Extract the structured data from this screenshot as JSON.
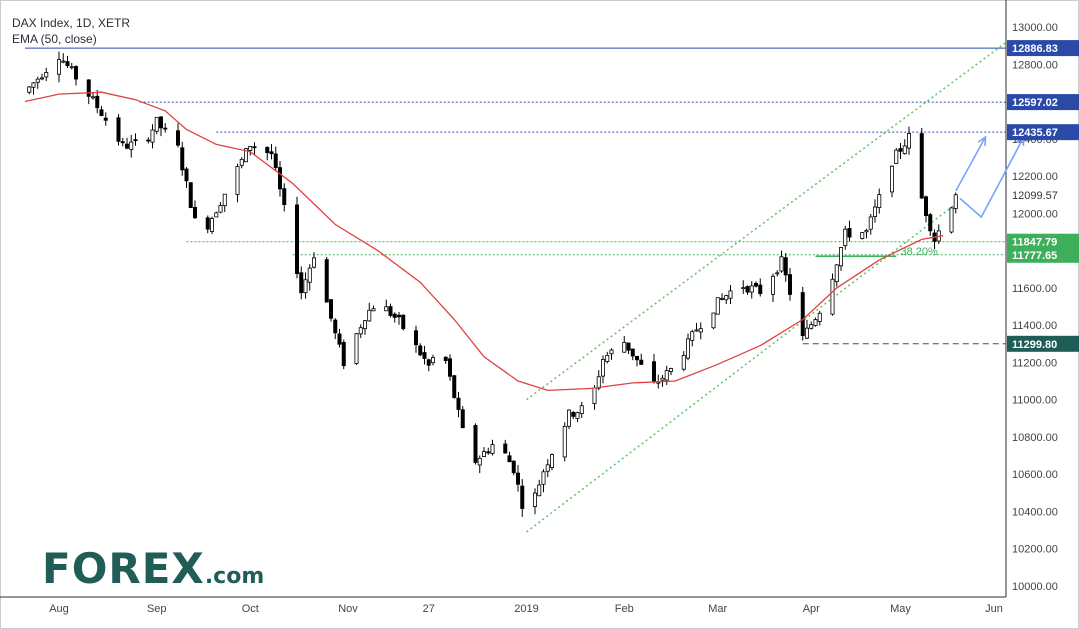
{
  "chart_data": {
    "type": "candlestick",
    "title": "DAX Index, 1D, XETR",
    "subtitle": "EMA (50, close)",
    "ylim": [
      10000,
      13000
    ],
    "y_ticks": [
      10000,
      10200,
      10400,
      10600,
      10800,
      11000,
      11200,
      11400,
      11600,
      11800,
      12000,
      12200,
      12400,
      12600,
      12800,
      13000
    ],
    "y_tick_labels": [
      "10000.00",
      "10200.00",
      "10400.00",
      "10600.00",
      "10800.00",
      "11000.00",
      "11200.00",
      "11400.00",
      "11600.00",
      "11800.00",
      "12000.00",
      "12200.00",
      "12400.00",
      "12600.00",
      "12800.00",
      "13000.00"
    ],
    "x_tick_labels": [
      "Aug",
      "Sep",
      "Oct",
      "Nov",
      "27",
      "2019",
      "Feb",
      "Mar",
      "Apr",
      "May",
      "Jun"
    ],
    "x_tick_days": [
      0,
      23,
      45,
      68,
      87,
      110,
      133,
      155,
      177,
      198,
      220
    ],
    "last_day": 211,
    "levels": [
      {
        "value": 12886.83,
        "label": "12886.83",
        "style": "solid",
        "color": "#2b4aa8",
        "x_start_day": -8
      },
      {
        "value": 12597.02,
        "label": "12597.02",
        "style": "dotted",
        "color": "#2b4aa8",
        "x_start_day": 19
      },
      {
        "value": 12435.67,
        "label": "12435.67",
        "style": "dotted",
        "color": "#2b4aa8",
        "x_start_day": 37
      },
      {
        "value": 11847.79,
        "label": "11847.79",
        "style": "dotted",
        "color": "#3dae5a",
        "x_start_day": 30
      },
      {
        "value": 11777.65,
        "label": "11777.65",
        "style": "dotted",
        "color": "#3dae5a",
        "x_start_day": 55
      },
      {
        "value": 11299.8,
        "label": "11299.80",
        "style": "dashed",
        "color": "#1f5d56",
        "x_start_day": 175
      }
    ],
    "current_price": {
      "value": 12099.57,
      "label": "12099.57"
    },
    "fib_label": "38.20%",
    "fib_level": 11770,
    "ema_path": [
      [
        -8,
        12600
      ],
      [
        0,
        12640
      ],
      [
        10,
        12650
      ],
      [
        18,
        12610
      ],
      [
        25,
        12550
      ],
      [
        30,
        12450
      ],
      [
        37,
        12370
      ],
      [
        45,
        12330
      ],
      [
        55,
        12160
      ],
      [
        65,
        11940
      ],
      [
        75,
        11800
      ],
      [
        85,
        11630
      ],
      [
        93,
        11430
      ],
      [
        100,
        11230
      ],
      [
        108,
        11100
      ],
      [
        115,
        11050
      ],
      [
        125,
        11060
      ],
      [
        135,
        11090
      ],
      [
        145,
        11100
      ],
      [
        155,
        11190
      ],
      [
        165,
        11290
      ],
      [
        175,
        11430
      ],
      [
        183,
        11600
      ],
      [
        193,
        11750
      ],
      [
        203,
        11860
      ],
      [
        208,
        11880
      ]
    ],
    "channel_lower": [
      [
        110,
        10290
      ],
      [
        211,
        12050
      ]
    ],
    "channel_upper": [
      [
        110,
        11000
      ],
      [
        223,
        12920
      ]
    ],
    "candles_anchor": [
      [
        -8,
        12650
      ],
      [
        0,
        12850
      ],
      [
        5,
        12700
      ],
      [
        10,
        12540
      ],
      [
        15,
        12360
      ],
      [
        20,
        12380
      ],
      [
        23,
        12490
      ],
      [
        28,
        12350
      ],
      [
        33,
        11860
      ],
      [
        36,
        11980
      ],
      [
        40,
        12150
      ],
      [
        45,
        12370
      ],
      [
        50,
        12320
      ],
      [
        55,
        11820
      ],
      [
        57,
        11580
      ],
      [
        60,
        11780
      ],
      [
        65,
        11350
      ],
      [
        67,
        11200
      ],
      [
        72,
        11450
      ],
      [
        75,
        11530
      ],
      [
        80,
        11420
      ],
      [
        87,
        11180
      ],
      [
        90,
        11300
      ],
      [
        95,
        10830
      ],
      [
        97,
        10650
      ],
      [
        103,
        10780
      ],
      [
        107,
        10630
      ],
      [
        110,
        10350
      ],
      [
        114,
        10620
      ],
      [
        120,
        10920
      ],
      [
        125,
        10970
      ],
      [
        128,
        11220
      ],
      [
        133,
        11310
      ],
      [
        140,
        11080
      ],
      [
        145,
        11180
      ],
      [
        150,
        11380
      ],
      [
        155,
        11520
      ],
      [
        160,
        11620
      ],
      [
        165,
        11580
      ],
      [
        170,
        11740
      ],
      [
        175,
        11330
      ],
      [
        180,
        11520
      ],
      [
        185,
        11890
      ],
      [
        190,
        11900
      ],
      [
        193,
        12080
      ],
      [
        196,
        12280
      ],
      [
        200,
        12410
      ],
      [
        203,
        12080
      ],
      [
        206,
        11860
      ],
      [
        208,
        11950
      ],
      [
        211,
        12099.57
      ]
    ],
    "projection_path": [
      [
        211,
        12120
      ],
      [
        218,
        12410
      ],
      [
        212,
        12080
      ],
      [
        217,
        11980
      ],
      [
        227,
        12410
      ]
    ]
  },
  "logo": {
    "brand": "FOREX",
    "tld": ".com"
  }
}
